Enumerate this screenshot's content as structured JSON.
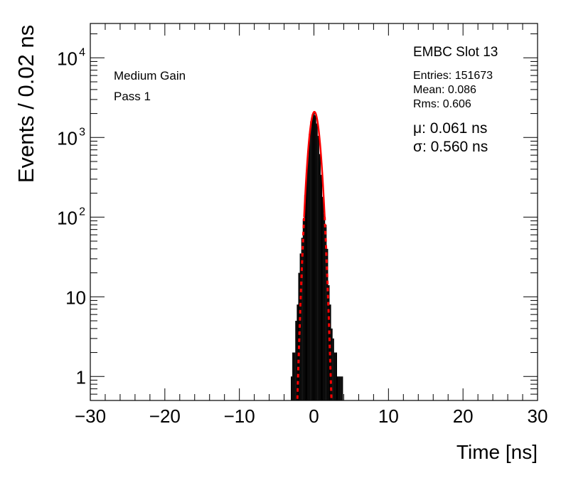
{
  "chart_data": {
    "type": "histogram",
    "xlabel": "Time [ns]",
    "ylabel": "Events / 0.02 ns",
    "xlim": [
      -30,
      30
    ],
    "ylim": [
      0.5,
      27000
    ],
    "yscale": "log",
    "xticks": [
      -30,
      -20,
      -10,
      0,
      10,
      20,
      30
    ],
    "ytick_labels": [
      {
        "value": 1,
        "label": "1"
      },
      {
        "value": 10,
        "label": "10"
      },
      {
        "value": 100,
        "label": "10",
        "exp": "2"
      },
      {
        "value": 1000,
        "label": "10",
        "exp": "3"
      },
      {
        "value": 10000,
        "label": "10",
        "exp": "4"
      }
    ],
    "labels": {
      "gain": "Medium Gain",
      "pass": "Pass 1",
      "slot": "EMBC Slot 13",
      "entries": "Entries: 151673",
      "mean": "Mean: 0.086",
      "rms": "Rms: 0.606",
      "mu": "μ: 0.061 ns",
      "sigma": "σ: 0.560 ns"
    },
    "series": [
      {
        "kind": "histogram",
        "color": "#000000",
        "x": [
          -3.0,
          -2.8,
          -2.6,
          -2.4,
          -2.2,
          -2.0,
          -1.8,
          -1.6,
          -1.4,
          -1.2,
          -1.0,
          -0.8,
          -0.6,
          -0.4,
          -0.2,
          0.0,
          0.2,
          0.4,
          0.6,
          0.8,
          1.0,
          1.2,
          1.4,
          1.6,
          1.8,
          2.0,
          2.2,
          2.4,
          2.6,
          2.8,
          3.0,
          3.2,
          3.4,
          3.6,
          3.8
        ],
        "y": [
          1,
          2,
          2,
          5,
          8,
          20,
          35,
          55,
          95,
          190,
          360,
          680,
          1100,
          1600,
          1950,
          2100,
          1900,
          1500,
          1050,
          620,
          340,
          180,
          110,
          80,
          40,
          14,
          8,
          4,
          3,
          2,
          2,
          1,
          1,
          1,
          1
        ]
      },
      {
        "kind": "gaussian_fit",
        "name": "fit",
        "color": "#ff0000",
        "amplitude": 2100,
        "mu": 0.061,
        "sigma": 0.56,
        "x_range": [
          -2.5,
          2.5
        ]
      }
    ]
  }
}
